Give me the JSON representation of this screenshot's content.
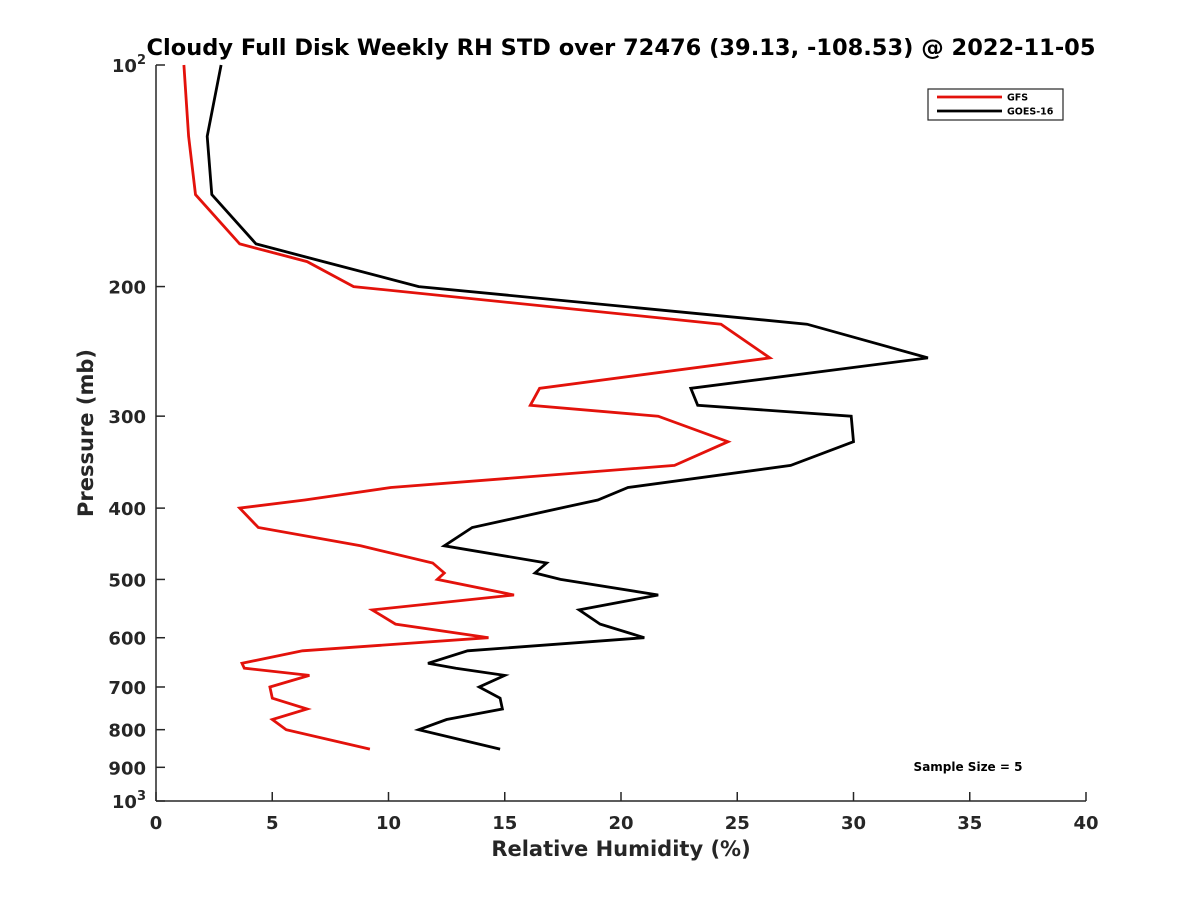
{
  "chart_data": {
    "type": "line",
    "title": "Cloudy Full Disk Weekly RH STD over 72476 (39.13, -108.53) @ 2022-11-05",
    "xlabel": "Relative Humidity (%)",
    "ylabel": "Pressure (mb)",
    "xlim": [
      0,
      40
    ],
    "ylim": [
      100,
      1000
    ],
    "y_scale": "log",
    "y_reversed": true,
    "grid": false,
    "legend_position": "top-right",
    "x_ticks": [
      "0",
      "5",
      "10",
      "15",
      "20",
      "25",
      "30",
      "35",
      "40"
    ],
    "y_ticks": [
      {
        "value": 100,
        "base": "10",
        "exp": "2"
      },
      {
        "value": 200,
        "label": "200"
      },
      {
        "value": 300,
        "label": "300"
      },
      {
        "value": 400,
        "label": "400"
      },
      {
        "value": 500,
        "label": "500"
      },
      {
        "value": 600,
        "label": "600"
      },
      {
        "value": 700,
        "label": "700"
      },
      {
        "value": 800,
        "label": "800"
      },
      {
        "value": 900,
        "label": "900"
      },
      {
        "value": 1000,
        "base": "10",
        "exp": "3"
      }
    ],
    "annotation": "Sample Size = 5",
    "series": [
      {
        "name": "GFS",
        "color": "#e3120b",
        "points": [
          [
            1.2,
            100
          ],
          [
            1.4,
            125
          ],
          [
            1.7,
            150
          ],
          [
            3.6,
            175
          ],
          [
            6.5,
            185
          ],
          [
            8.5,
            200
          ],
          [
            24.3,
            225
          ],
          [
            26.4,
            250
          ],
          [
            16.5,
            275
          ],
          [
            16.1,
            290
          ],
          [
            21.6,
            300
          ],
          [
            24.6,
            325
          ],
          [
            22.3,
            350
          ],
          [
            10.1,
            375
          ],
          [
            6.4,
            390
          ],
          [
            3.6,
            400
          ],
          [
            4.4,
            425
          ],
          [
            8.8,
            450
          ],
          [
            11.9,
            475
          ],
          [
            12.4,
            490
          ],
          [
            12.1,
            500
          ],
          [
            15.4,
            525
          ],
          [
            9.3,
            550
          ],
          [
            10.3,
            575
          ],
          [
            14.3,
            600
          ],
          [
            6.3,
            625
          ],
          [
            3.7,
            650
          ],
          [
            3.8,
            660
          ],
          [
            6.6,
            675
          ],
          [
            4.9,
            700
          ],
          [
            5.0,
            725
          ],
          [
            6.5,
            750
          ],
          [
            5.0,
            775
          ],
          [
            5.6,
            800
          ],
          [
            9.2,
            850
          ]
        ]
      },
      {
        "name": "GOES-16",
        "color": "#000000",
        "points": [
          [
            2.8,
            100
          ],
          [
            2.2,
            125
          ],
          [
            2.4,
            150
          ],
          [
            4.3,
            175
          ],
          [
            7.2,
            185
          ],
          [
            11.3,
            200
          ],
          [
            28.0,
            225
          ],
          [
            33.2,
            250
          ],
          [
            23.0,
            275
          ],
          [
            23.3,
            290
          ],
          [
            29.9,
            300
          ],
          [
            30.0,
            325
          ],
          [
            27.3,
            350
          ],
          [
            20.3,
            375
          ],
          [
            19.0,
            390
          ],
          [
            17.4,
            400
          ],
          [
            13.6,
            425
          ],
          [
            12.4,
            450
          ],
          [
            16.8,
            475
          ],
          [
            16.3,
            490
          ],
          [
            17.4,
            500
          ],
          [
            21.6,
            525
          ],
          [
            18.2,
            550
          ],
          [
            19.1,
            575
          ],
          [
            21.0,
            600
          ],
          [
            13.4,
            625
          ],
          [
            11.7,
            650
          ],
          [
            12.9,
            660
          ],
          [
            15.0,
            675
          ],
          [
            13.9,
            700
          ],
          [
            14.8,
            725
          ],
          [
            14.9,
            750
          ],
          [
            12.5,
            775
          ],
          [
            11.3,
            800
          ],
          [
            14.8,
            850
          ]
        ]
      }
    ]
  }
}
